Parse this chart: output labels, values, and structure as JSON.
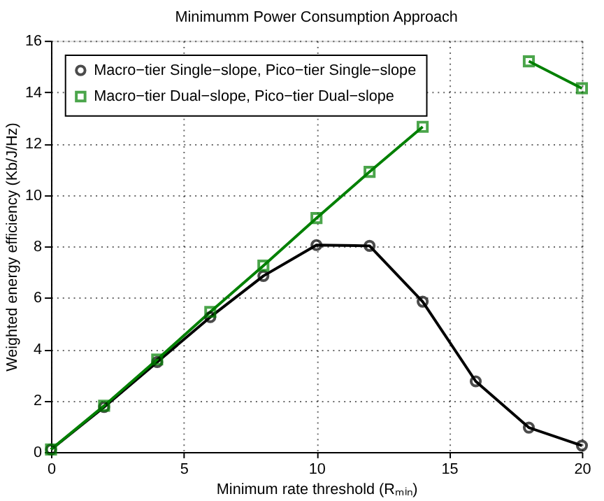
{
  "chart_data": {
    "type": "line",
    "title": "Minimumm Power Consumption Approach",
    "xlabel": "Minimum rate threshold (Rₘᵢₙ)",
    "ylabel": "Weighted energy efficiency (Kb/J/Hz)",
    "x": [
      0,
      2,
      4,
      6,
      8,
      10,
      12,
      14,
      16,
      18,
      20
    ],
    "series": [
      {
        "name": "Macro−tier Single−slope, Pico−tier Single−slope",
        "color": "#000000",
        "marker": "circle",
        "values": [
          0.1,
          1.75,
          3.5,
          5.25,
          6.85,
          8.05,
          8.02,
          5.85,
          2.75,
          0.95,
          0.25
        ]
      },
      {
        "name": "Macro−tier Dual−slope, Pico−tier Dual−slope",
        "color": "#008000",
        "marker": "square",
        "values": [
          0.1,
          1.8,
          3.6,
          5.45,
          7.25,
          9.1,
          10.9,
          12.65,
          null,
          15.2,
          14.15
        ]
      }
    ],
    "xlim": [
      0,
      20
    ],
    "xticks": [
      0,
      5,
      10,
      15,
      20
    ],
    "ylim": [
      0,
      16
    ],
    "yticks": [
      0,
      2,
      4,
      6,
      8,
      10,
      12,
      14,
      16
    ],
    "grid": true,
    "legend": "top left",
    "line_style": "solid"
  }
}
